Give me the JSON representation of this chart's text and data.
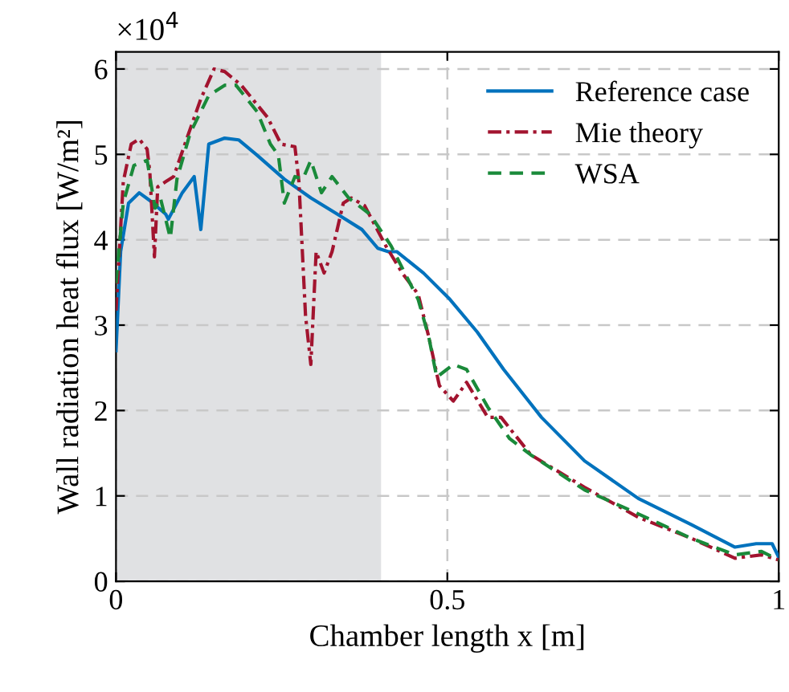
{
  "chart_data": {
    "type": "line",
    "xlabel": "Chamber length x [m]",
    "ylabel": "Wall radiation heat flux [W/m²]",
    "annotations": [
      "×10$^{4}$"
    ],
    "series": [
      {
        "name": "Reference case",
        "color": "#0072bd",
        "line_style": "solid",
        "x": [
          0,
          0.007,
          0.019,
          0.035,
          0.051,
          0.075,
          0.079,
          0.1,
          0.118,
          0.128,
          0.14,
          0.164,
          0.185,
          0.213,
          0.254,
          0.294,
          0.334,
          0.371,
          0.395,
          0.411,
          0.424,
          0.464,
          0.504,
          0.545,
          0.585,
          0.642,
          0.707,
          0.788,
          0.869,
          0.934,
          0.966,
          0.99,
          1.0
        ],
        "values": [
          2.7,
          3.86,
          4.43,
          4.55,
          4.46,
          4.3,
          4.24,
          4.55,
          4.74,
          4.12,
          5.12,
          5.19,
          5.17,
          4.99,
          4.71,
          4.49,
          4.3,
          4.12,
          3.9,
          3.86,
          3.86,
          3.61,
          3.3,
          2.92,
          2.48,
          1.92,
          1.41,
          0.97,
          0.66,
          0.4,
          0.44,
          0.44,
          0.28
        ]
      },
      {
        "name": "Mie theory",
        "color": "#a2142f",
        "line_style": "dashdot",
        "x": [
          0,
          0.011,
          0.023,
          0.035,
          0.047,
          0.051,
          0.058,
          0.063,
          0.075,
          0.087,
          0.108,
          0.128,
          0.148,
          0.164,
          0.189,
          0.229,
          0.249,
          0.27,
          0.276,
          0.286,
          0.294,
          0.302,
          0.314,
          0.326,
          0.343,
          0.355,
          0.375,
          0.407,
          0.432,
          0.456,
          0.472,
          0.488,
          0.509,
          0.529,
          0.561,
          0.581,
          0.626,
          0.707,
          0.788,
          0.869,
          0.934,
          0.974,
          1.0
        ],
        "values": [
          3.17,
          4.68,
          5.12,
          5.18,
          5.06,
          4.8,
          3.8,
          4.62,
          4.68,
          4.74,
          5.21,
          5.65,
          6.0,
          5.97,
          5.81,
          5.43,
          5.12,
          5.09,
          4.68,
          3.11,
          2.54,
          3.86,
          3.61,
          3.86,
          4.43,
          4.49,
          4.4,
          3.93,
          3.61,
          3.36,
          2.86,
          2.29,
          2.11,
          2.33,
          1.92,
          1.92,
          1.48,
          1.1,
          0.75,
          0.5,
          0.27,
          0.31,
          0.25
        ]
      },
      {
        "name": "WSA",
        "color": "#1a8a3a",
        "line_style": "dashed",
        "x": [
          0,
          0.011,
          0.027,
          0.047,
          0.059,
          0.067,
          0.082,
          0.092,
          0.112,
          0.14,
          0.164,
          0.181,
          0.213,
          0.233,
          0.245,
          0.254,
          0.27,
          0.282,
          0.294,
          0.31,
          0.326,
          0.351,
          0.383,
          0.415,
          0.456,
          0.472,
          0.484,
          0.509,
          0.529,
          0.561,
          0.594,
          0.626,
          0.707,
          0.788,
          0.869,
          0.934,
          0.974,
          1.0
        ],
        "values": [
          3.49,
          4.43,
          4.87,
          4.93,
          4.37,
          4.49,
          4.02,
          4.71,
          5.25,
          5.69,
          5.81,
          5.81,
          5.5,
          5.12,
          4.99,
          4.43,
          4.74,
          4.71,
          4.93,
          4.55,
          4.74,
          4.49,
          4.3,
          3.93,
          3.3,
          2.86,
          2.39,
          2.54,
          2.48,
          2.04,
          1.67,
          1.48,
          1.07,
          0.79,
          0.5,
          0.31,
          0.35,
          0.25
        ]
      }
    ],
    "bands": [
      {
        "axis": "x",
        "from": 0,
        "to": 0.4,
        "color": "#e0e1e3"
      }
    ],
    "xlim": [
      0,
      1
    ],
    "xticks": [
      0,
      0.5,
      1
    ],
    "ylim": [
      0,
      6.2
    ],
    "yticks": [
      0,
      1,
      2,
      3,
      4,
      5,
      6
    ],
    "grid": true,
    "legend": "top right"
  }
}
